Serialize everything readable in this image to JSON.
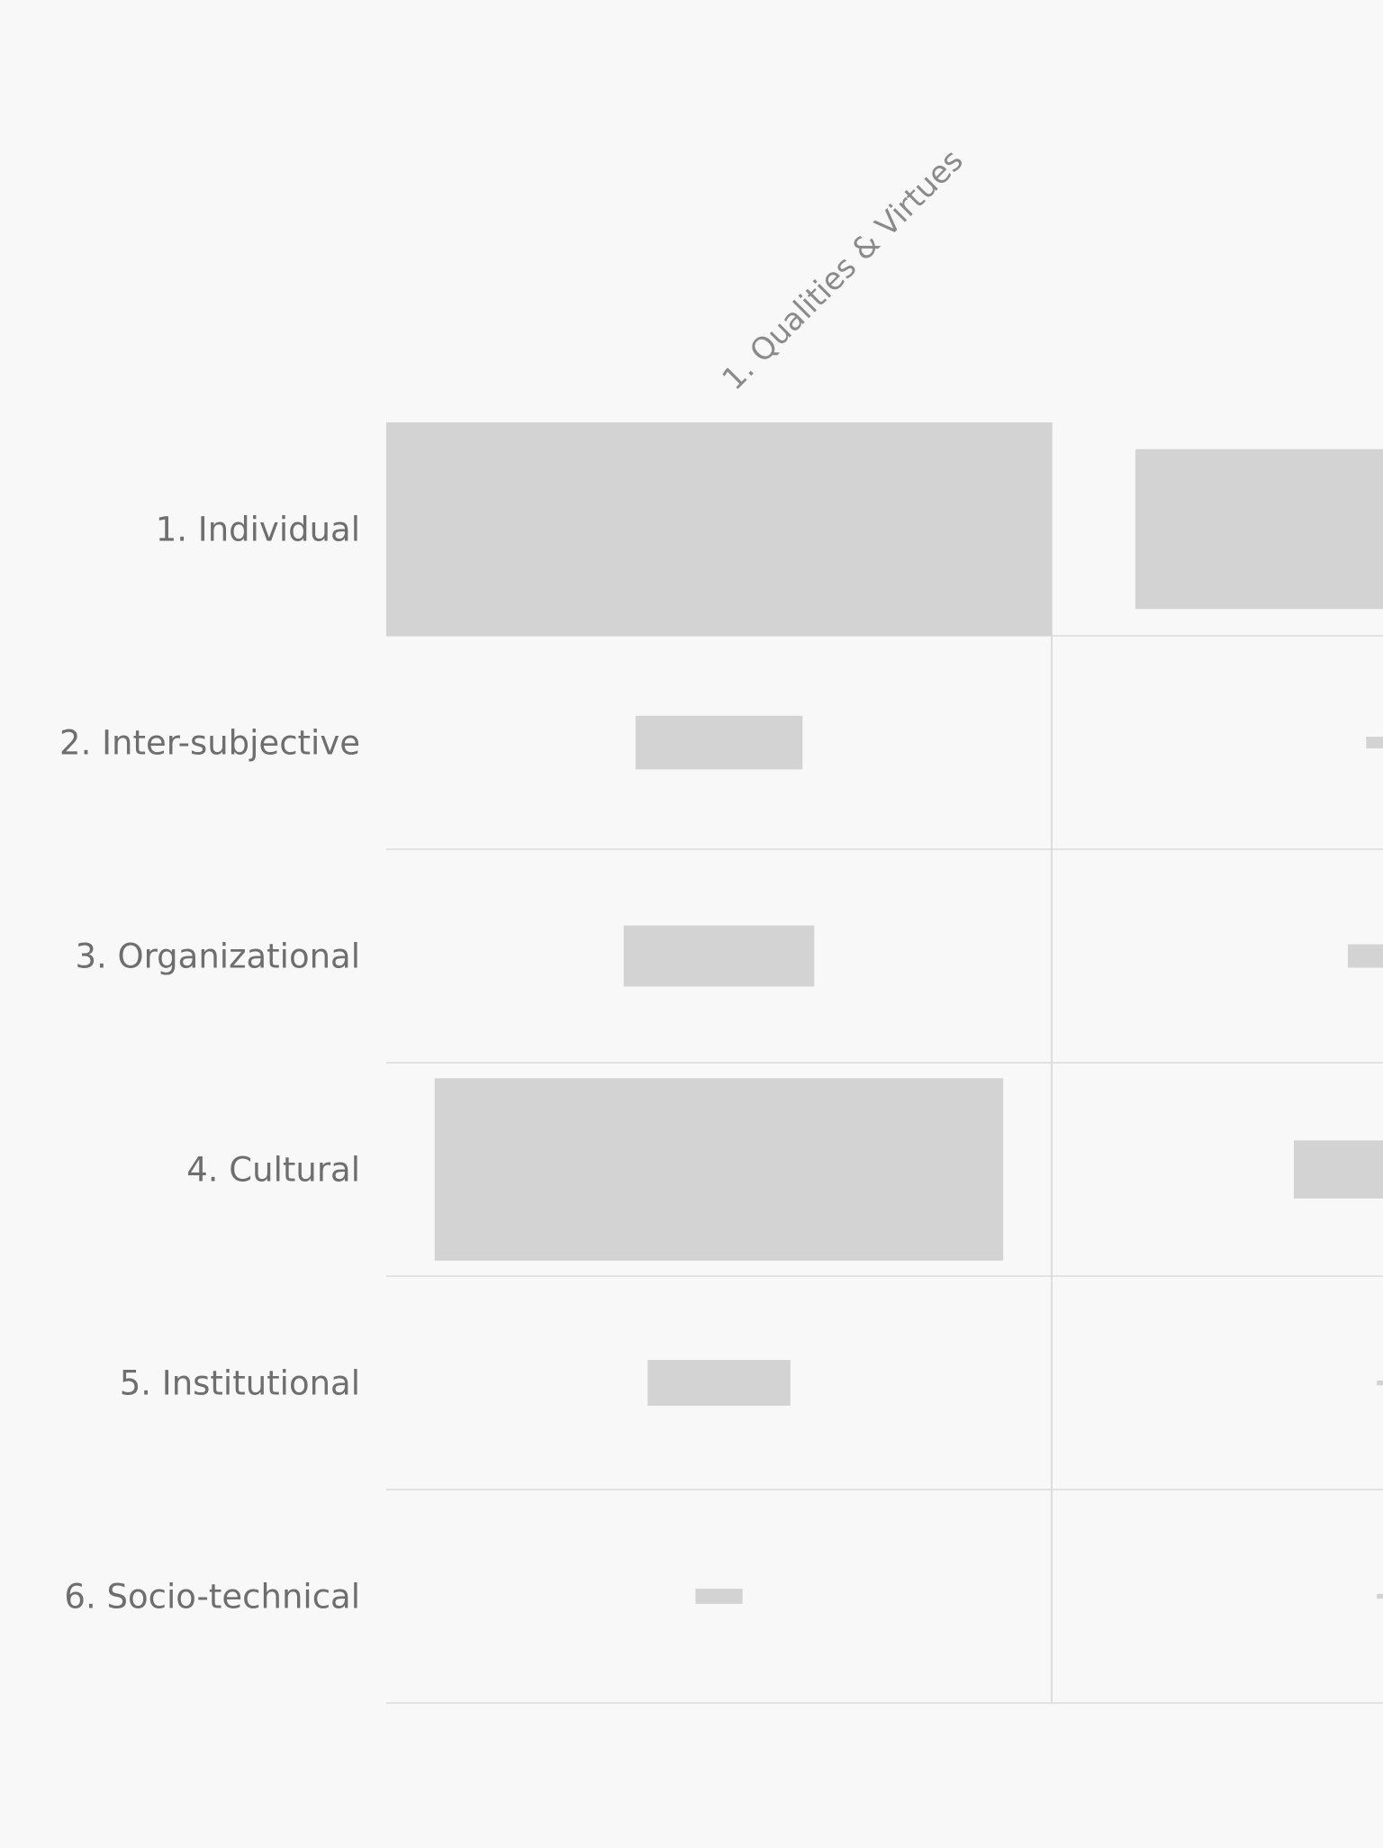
{
  "chart_data": {
    "type": "heatmap",
    "encoding": "rectangle area proportional to value within each cell",
    "rows": [
      "1. Individual",
      "2. Inter-subjective",
      "3. Organizational",
      "4. Cultural",
      "5. Institutional",
      "6. Socio-technical"
    ],
    "columns": [
      "1. Qualities & Virtues",
      ""
    ],
    "values": [
      [
        100,
        56
      ],
      [
        6.3,
        0.3
      ],
      [
        8.2,
        1.2
      ],
      [
        73,
        7.4
      ],
      [
        4.6,
        0.05
      ],
      [
        0.5,
        0.05
      ]
    ],
    "max_value": 100,
    "colors": {
      "background": "#f8f8f8",
      "cell_fill": "#d3d3d3",
      "grid": "#e2e2e2",
      "label_text": "#6e6e6e"
    }
  }
}
